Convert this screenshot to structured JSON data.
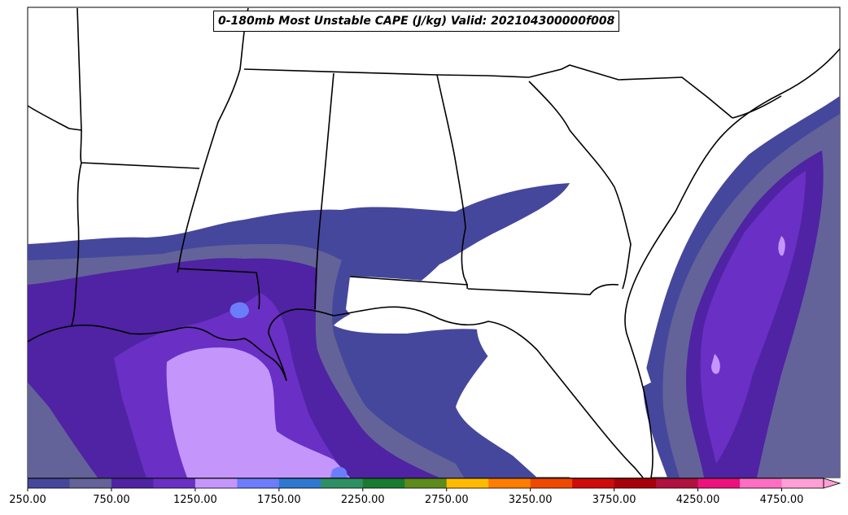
{
  "title": "0-180mb Most Unstable CAPE (J/kg) Valid: 202104300000f008",
  "colorbar": {
    "ticks": [
      "250.00",
      "750.00",
      "1250.00",
      "1750.00",
      "2250.00",
      "2750.00",
      "3250.00",
      "3750.00",
      "4250.00",
      "4750.00"
    ],
    "colors": [
      "#45479c",
      "#636399",
      "#4f23a3",
      "#6a2fc4",
      "#c496fc",
      "#6b7dfa",
      "#2e78d1",
      "#2e8f63",
      "#197a30",
      "#5e8a1b",
      "#ffbb00",
      "#ff7d00",
      "#f04800",
      "#d10a0a",
      "#a8000a",
      "#b0113f",
      "#ee117c",
      "#ff6ec3",
      "#ff9fd6"
    ],
    "extend": "max"
  },
  "colors": {
    "land": "#ffffff",
    "border": "#000000"
  }
}
